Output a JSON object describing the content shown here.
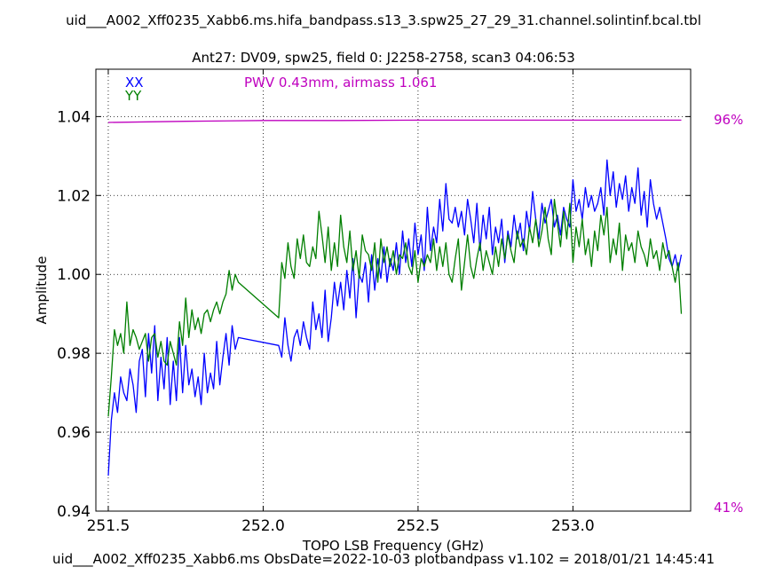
{
  "header": {
    "title": "uid___A002_Xff0235_Xabb6.ms.hifa_bandpass.s13_3.spw25_27_29_31.channel.solintinf.bcal.tbl",
    "subtitle": "Ant27: DV09,  spw25,  field 0: J2258-2758,  scan3  04:06:53"
  },
  "footer": {
    "text": "uid___A002_Xff0235_Xabb6.ms  ObsDate=2022-10-03   plotbandpass v1.102 = 2018/01/21 14:45:41"
  },
  "colors": {
    "xx": "#0000ff",
    "yy": "#007f00",
    "pwv": "#bf00bf"
  },
  "chart_data": {
    "type": "line",
    "xlabel": "TOPO LSB Frequency (GHz)",
    "ylabel": "Amplitude",
    "xlim": [
      251.46,
      253.38
    ],
    "ylim": [
      0.94,
      1.052
    ],
    "xticks": [
      "251.5",
      "252.0",
      "252.5",
      "253.0"
    ],
    "xtick_values": [
      251.5,
      252.0,
      252.5,
      253.0
    ],
    "yticks": [
      "0.94",
      "0.96",
      "0.98",
      "1.00",
      "1.02",
      "1.04"
    ],
    "ytick_values": [
      0.94,
      0.96,
      0.98,
      1.0,
      1.02,
      1.04
    ],
    "grid": true,
    "legend": {
      "placement": "top-left",
      "entries": [
        "XX",
        "YY"
      ]
    },
    "annotation": "PWV 0.43mm, airmass 1.061",
    "right_axis": {
      "top_label": "96%",
      "bottom_label": "41%",
      "top_value": 96,
      "bottom_value": 41
    },
    "transmission": {
      "name": "PWV",
      "x": [
        251.5,
        251.75,
        252.0,
        252.25,
        252.5,
        252.75,
        253.0,
        253.25,
        253.35
      ],
      "y": [
        1.0385,
        1.0388,
        1.039,
        1.039,
        1.0391,
        1.0391,
        1.0391,
        1.0391,
        1.0391
      ]
    },
    "gap": [
      251.93,
      252.05
    ],
    "series": [
      {
        "name": "XX",
        "x": [
          251.5,
          251.51,
          251.52,
          251.53,
          251.54,
          251.55,
          251.56,
          251.57,
          251.58,
          251.59,
          251.6,
          251.61,
          251.62,
          251.63,
          251.64,
          251.65,
          251.66,
          251.67,
          251.68,
          251.69,
          251.7,
          251.71,
          251.72,
          251.73,
          251.74,
          251.75,
          251.76,
          251.77,
          251.78,
          251.79,
          251.8,
          251.81,
          251.82,
          251.83,
          251.84,
          251.85,
          251.86,
          251.87,
          251.88,
          251.89,
          251.9,
          251.91,
          251.92,
          252.05,
          252.06,
          252.07,
          252.08,
          252.09,
          252.1,
          252.11,
          252.12,
          252.13,
          252.14,
          252.15,
          252.16,
          252.17,
          252.18,
          252.19,
          252.2,
          252.21,
          252.22,
          252.23,
          252.24,
          252.25,
          252.26,
          252.27,
          252.28,
          252.29,
          252.3,
          252.31,
          252.32,
          252.33,
          252.34,
          252.35,
          252.36,
          252.37,
          252.38,
          252.39,
          252.4,
          252.41,
          252.42,
          252.43,
          252.44,
          252.45,
          252.46,
          252.47,
          252.48,
          252.49,
          252.5,
          252.51,
          252.52,
          252.53,
          252.54,
          252.55,
          252.56,
          252.57,
          252.58,
          252.59,
          252.6,
          252.61,
          252.62,
          252.63,
          252.64,
          252.65,
          252.66,
          252.67,
          252.68,
          252.69,
          252.7,
          252.71,
          252.72,
          252.73,
          252.74,
          252.75,
          252.76,
          252.77,
          252.78,
          252.79,
          252.8,
          252.81,
          252.82,
          252.83,
          252.84,
          252.85,
          252.86,
          252.87,
          252.88,
          252.89,
          252.9,
          252.91,
          252.92,
          252.93,
          252.94,
          252.95,
          252.96,
          252.97,
          252.98,
          252.99,
          253.0,
          253.01,
          253.02,
          253.03,
          253.04,
          253.05,
          253.06,
          253.07,
          253.08,
          253.09,
          253.1,
          253.11,
          253.12,
          253.13,
          253.14,
          253.15,
          253.16,
          253.17,
          253.18,
          253.19,
          253.2,
          253.21,
          253.22,
          253.23,
          253.24,
          253.25,
          253.26,
          253.27,
          253.28,
          253.29,
          253.3,
          253.31,
          253.32,
          253.33,
          253.34,
          253.35
        ],
        "y": [
          0.949,
          0.963,
          0.97,
          0.965,
          0.974,
          0.97,
          0.968,
          0.976,
          0.972,
          0.965,
          0.978,
          0.981,
          0.969,
          0.985,
          0.975,
          0.987,
          0.968,
          0.979,
          0.971,
          0.984,
          0.967,
          0.978,
          0.968,
          0.984,
          0.97,
          0.982,
          0.972,
          0.976,
          0.969,
          0.974,
          0.967,
          0.98,
          0.97,
          0.975,
          0.971,
          0.983,
          0.972,
          0.979,
          0.985,
          0.977,
          0.987,
          0.981,
          0.984,
          0.982,
          0.979,
          0.989,
          0.982,
          0.978,
          0.984,
          0.986,
          0.982,
          0.988,
          0.984,
          0.981,
          0.993,
          0.986,
          0.99,
          0.984,
          0.996,
          0.983,
          0.989,
          0.998,
          0.992,
          0.998,
          0.991,
          1.001,
          0.994,
          1.004,
          0.989,
          1.0,
          0.998,
          1.003,
          0.993,
          1.005,
          0.996,
          1.004,
          0.999,
          1.007,
          0.998,
          1.004,
          1.001,
          1.008,
          1.0,
          1.011,
          1.003,
          1.009,
          1.002,
          1.013,
          1.005,
          1.01,
          1.001,
          1.017,
          1.006,
          1.012,
          1.008,
          1.019,
          1.011,
          1.023,
          1.014,
          1.013,
          1.017,
          1.012,
          1.016,
          1.01,
          1.019,
          1.014,
          1.008,
          1.018,
          1.006,
          1.015,
          1.009,
          1.017,
          1.005,
          1.012,
          1.008,
          1.014,
          1.003,
          1.011,
          1.007,
          1.015,
          1.009,
          1.013,
          1.006,
          1.016,
          1.011,
          1.021,
          1.014,
          1.009,
          1.018,
          1.013,
          1.016,
          1.019,
          1.012,
          1.015,
          1.01,
          1.017,
          1.014,
          1.012,
          1.024,
          1.016,
          1.019,
          1.014,
          1.022,
          1.017,
          1.02,
          1.016,
          1.018,
          1.022,
          1.015,
          1.029,
          1.02,
          1.026,
          1.017,
          1.023,
          1.019,
          1.025,
          1.016,
          1.022,
          1.018,
          1.027,
          1.015,
          1.021,
          1.012,
          1.024,
          1.018,
          1.014,
          1.017,
          1.013,
          1.009,
          1.004,
          1.002,
          1.005,
          1.001,
          1.005
        ]
      },
      {
        "name": "YY",
        "x": [
          251.5,
          251.51,
          251.52,
          251.53,
          251.54,
          251.55,
          251.56,
          251.57,
          251.58,
          251.59,
          251.6,
          251.61,
          251.62,
          251.63,
          251.64,
          251.65,
          251.66,
          251.67,
          251.68,
          251.69,
          251.7,
          251.71,
          251.72,
          251.73,
          251.74,
          251.75,
          251.76,
          251.77,
          251.78,
          251.79,
          251.8,
          251.81,
          251.82,
          251.83,
          251.84,
          251.85,
          251.86,
          251.87,
          251.88,
          251.89,
          251.9,
          251.91,
          251.92,
          252.05,
          252.06,
          252.07,
          252.08,
          252.09,
          252.1,
          252.11,
          252.12,
          252.13,
          252.14,
          252.15,
          252.16,
          252.17,
          252.18,
          252.19,
          252.2,
          252.21,
          252.22,
          252.23,
          252.24,
          252.25,
          252.26,
          252.27,
          252.28,
          252.29,
          252.3,
          252.31,
          252.32,
          252.33,
          252.34,
          252.35,
          252.36,
          252.37,
          252.38,
          252.39,
          252.4,
          252.41,
          252.42,
          252.43,
          252.44,
          252.45,
          252.46,
          252.47,
          252.48,
          252.49,
          252.5,
          252.51,
          252.52,
          252.53,
          252.54,
          252.55,
          252.56,
          252.57,
          252.58,
          252.59,
          252.6,
          252.61,
          252.62,
          252.63,
          252.64,
          252.65,
          252.66,
          252.67,
          252.68,
          252.69,
          252.7,
          252.71,
          252.72,
          252.73,
          252.74,
          252.75,
          252.76,
          252.77,
          252.78,
          252.79,
          252.8,
          252.81,
          252.82,
          252.83,
          252.84,
          252.85,
          252.86,
          252.87,
          252.88,
          252.89,
          252.9,
          252.91,
          252.92,
          252.93,
          252.94,
          252.95,
          252.96,
          252.97,
          252.98,
          252.99,
          253.0,
          253.01,
          253.02,
          253.03,
          253.04,
          253.05,
          253.06,
          253.07,
          253.08,
          253.09,
          253.1,
          253.11,
          253.12,
          253.13,
          253.14,
          253.15,
          253.16,
          253.17,
          253.18,
          253.19,
          253.2,
          253.21,
          253.22,
          253.23,
          253.24,
          253.25,
          253.26,
          253.27,
          253.28,
          253.29,
          253.3,
          253.31,
          253.32,
          253.33,
          253.34,
          253.35
        ],
        "y": [
          0.964,
          0.974,
          0.986,
          0.982,
          0.985,
          0.98,
          0.993,
          0.982,
          0.986,
          0.984,
          0.981,
          0.983,
          0.985,
          0.978,
          0.984,
          0.985,
          0.979,
          0.983,
          0.978,
          0.977,
          0.983,
          0.98,
          0.977,
          0.988,
          0.982,
          0.994,
          0.984,
          0.991,
          0.986,
          0.989,
          0.985,
          0.99,
          0.991,
          0.988,
          0.991,
          0.993,
          0.99,
          0.993,
          0.995,
          1.001,
          0.996,
          1.0,
          0.998,
          0.989,
          1.003,
          0.999,
          1.008,
          1.002,
          0.999,
          1.009,
          1.004,
          1.01,
          1.003,
          1.002,
          1.007,
          1.004,
          1.016,
          1.01,
          1.003,
          1.012,
          1.001,
          1.008,
          1.002,
          1.015,
          1.007,
          1.003,
          1.011,
          1.001,
          1.006,
          0.999,
          1.01,
          1.006,
          1.005,
          1.001,
          1.008,
          0.998,
          1.009,
          1.003,
          1.007,
          1.002,
          1.006,
          1.0,
          1.005,
          1.004,
          1.008,
          1.002,
          1.0,
          1.006,
          0.998,
          1.004,
          1.002,
          1.005,
          1.003,
          1.009,
          1.001,
          1.007,
          1.002,
          1.008,
          1.0,
          0.998,
          1.004,
          1.009,
          0.996,
          1.003,
          1.01,
          1.002,
          0.999,
          1.004,
          1.008,
          1.001,
          1.006,
          1.003,
          1.0,
          1.007,
          1.002,
          1.009,
          1.004,
          1.01,
          1.006,
          1.003,
          1.011,
          1.007,
          1.009,
          1.005,
          1.012,
          1.008,
          1.014,
          1.007,
          1.011,
          1.017,
          1.009,
          1.005,
          1.019,
          1.013,
          1.007,
          1.016,
          1.009,
          1.018,
          1.003,
          1.012,
          1.007,
          1.014,
          1.005,
          1.009,
          1.002,
          1.011,
          1.006,
          1.015,
          1.01,
          1.017,
          1.003,
          1.009,
          1.005,
          1.013,
          1.001,
          1.01,
          1.006,
          1.008,
          1.003,
          1.011,
          1.007,
          1.005,
          1.002,
          1.009,
          1.004,
          1.006,
          1.001,
          1.008,
          1.004,
          1.006,
          1.002,
          0.998,
          1.003,
          0.99
        ]
      }
    ]
  }
}
